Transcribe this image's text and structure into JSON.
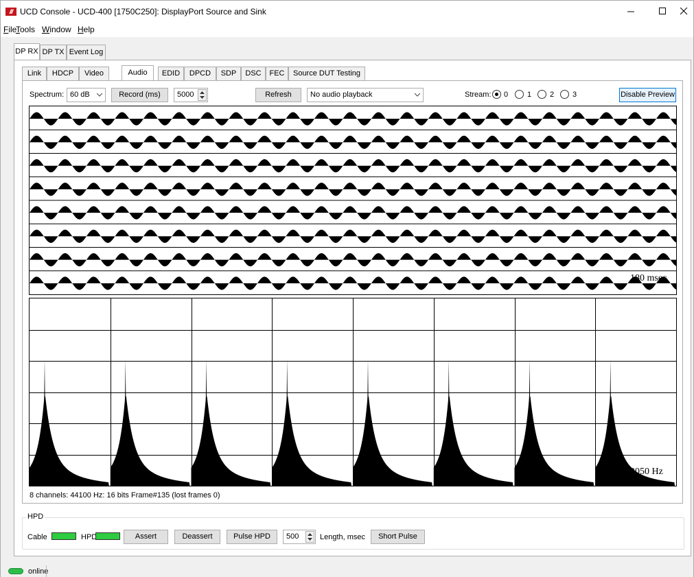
{
  "window": {
    "title": "UCD Console - UCD-400 [1750C250]: DisplayPort Source and Sink",
    "accent_color": "#c4161c"
  },
  "menu": [
    {
      "label": "File",
      "hot": "F",
      "rest": "ile"
    },
    {
      "label": "Tools",
      "hot": "T",
      "rest": "ools"
    },
    {
      "label": "Window",
      "hot": "W",
      "rest": "indow"
    },
    {
      "label": "Help",
      "hot": "H",
      "rest": "elp"
    }
  ],
  "outer_tabs": [
    "DP RX",
    "DP TX",
    "Event Log"
  ],
  "inner_tabs": [
    "Link",
    "HDCP",
    "Video",
    "Audio",
    "EDID",
    "DPCD",
    "SDP",
    "DSC",
    "FEC",
    "Source DUT Testing"
  ],
  "toolbar": {
    "spectrum_label": "Spectrum:",
    "spectrum_value": "60 dB",
    "record_label": "Record (ms)",
    "record_value": "5000",
    "refresh_label": "Refresh",
    "playback_value": "No audio playback",
    "stream_label": "Stream:",
    "stream_options": [
      "0",
      "1",
      "2",
      "3"
    ],
    "selected_stream": "0",
    "disable_preview_label": "Disable Preview"
  },
  "waveform": {
    "channels": 8,
    "time_label": "180 msec"
  },
  "spectrum": {
    "channels": 8,
    "freq_label": "22050 Hz",
    "grid_rows": 6
  },
  "status_info": "8 channels: 44100 Hz: 16 bits Frame#135 (lost frames 0)",
  "hpd": {
    "group_title": "HPD",
    "cable_label": "Cable",
    "hpd_label": "HPD",
    "led_color": "#2ecc40",
    "assert_label": "Assert",
    "deassert_label": "Deassert",
    "pulse_label": "Pulse HPD",
    "pulse_value": "500",
    "length_label": "Length, msec",
    "short_pulse_label": "Short Pulse"
  },
  "statusbar": {
    "online_label": "online"
  }
}
